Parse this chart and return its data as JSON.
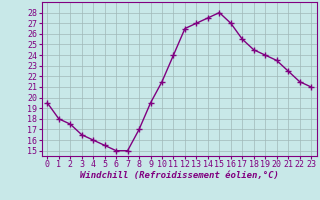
{
  "x": [
    0,
    1,
    2,
    3,
    4,
    5,
    6,
    7,
    8,
    9,
    10,
    11,
    12,
    13,
    14,
    15,
    16,
    17,
    18,
    19,
    20,
    21,
    22,
    23
  ],
  "y": [
    19.5,
    18.0,
    17.5,
    16.5,
    16.0,
    15.5,
    15.0,
    15.0,
    17.0,
    19.5,
    21.5,
    24.0,
    26.5,
    27.0,
    27.5,
    28.0,
    27.0,
    25.5,
    24.5,
    24.0,
    23.5,
    22.5,
    21.5,
    21.0
  ],
  "line_color": "#800080",
  "marker": "+",
  "marker_size": 4,
  "linewidth": 1.0,
  "bg_color": "#c8e8e8",
  "grid_color": "#a0b8b8",
  "xlabel": "Windchill (Refroidissement éolien,°C)",
  "xlabel_fontsize": 6.5,
  "tick_fontsize": 6,
  "ylim": [
    14.5,
    29
  ],
  "xlim": [
    -0.5,
    23.5
  ],
  "yticks": [
    15,
    16,
    17,
    18,
    19,
    20,
    21,
    22,
    23,
    24,
    25,
    26,
    27,
    28
  ],
  "xticks": [
    0,
    1,
    2,
    3,
    4,
    5,
    6,
    7,
    8,
    9,
    10,
    11,
    12,
    13,
    14,
    15,
    16,
    17,
    18,
    19,
    20,
    21,
    22,
    23
  ]
}
